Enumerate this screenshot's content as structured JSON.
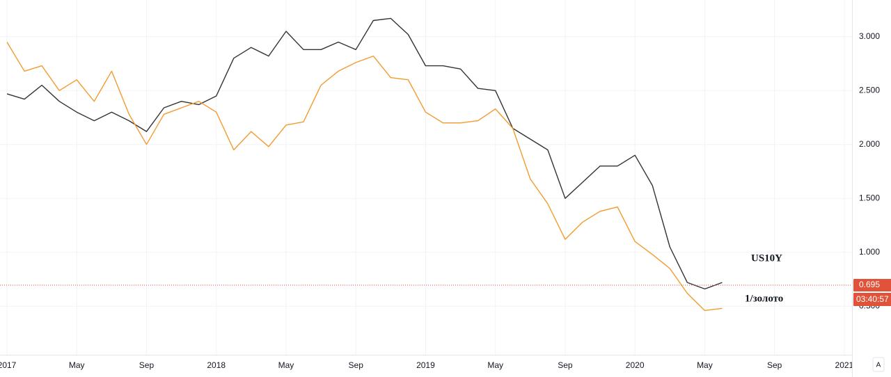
{
  "chart_data": {
    "type": "line",
    "categories": [
      "2017",
      null,
      null,
      null,
      "May",
      null,
      null,
      null,
      "Sep",
      null,
      null,
      null,
      "2018",
      null,
      null,
      null,
      "May",
      null,
      null,
      null,
      "Sep",
      null,
      null,
      null,
      "2019",
      null,
      null,
      null,
      "May",
      null,
      null,
      null,
      "Sep",
      null,
      null,
      null,
      "2020",
      null,
      null,
      null,
      "May",
      null,
      null,
      null,
      "Sep",
      null,
      null,
      null,
      "2021"
    ],
    "series": [
      {
        "name": "US10Y",
        "color": "#333333",
        "label_color": "#1a9090",
        "values": [
          2.47,
          2.42,
          2.55,
          2.4,
          2.3,
          2.22,
          2.3,
          2.22,
          2.12,
          2.34,
          2.4,
          2.37,
          2.45,
          2.8,
          2.9,
          2.82,
          3.05,
          2.88,
          2.88,
          2.95,
          2.88,
          3.15,
          3.17,
          3.02,
          2.73,
          2.73,
          2.7,
          2.52,
          2.5,
          2.15,
          2.05,
          1.95,
          1.5,
          1.65,
          1.8,
          1.8,
          1.9,
          1.62,
          1.05,
          0.72,
          0.66,
          0.72,
          null,
          null,
          null,
          null,
          null,
          null,
          null
        ]
      },
      {
        "name": "1/золото",
        "color": "#f39a2e",
        "label_color": "#f39a2e",
        "values": [
          2.95,
          2.68,
          2.73,
          2.5,
          2.6,
          2.4,
          2.68,
          2.28,
          2.0,
          2.28,
          2.34,
          2.4,
          2.3,
          1.95,
          2.12,
          1.98,
          2.18,
          2.21,
          2.55,
          2.68,
          2.76,
          2.82,
          2.62,
          2.6,
          2.3,
          2.2,
          2.2,
          2.22,
          2.33,
          2.15,
          1.68,
          1.45,
          1.12,
          1.28,
          1.38,
          1.42,
          1.1,
          0.98,
          0.85,
          0.62,
          0.46,
          0.48,
          null,
          null,
          null,
          null,
          null,
          null,
          null
        ]
      }
    ],
    "ylim": [
      0.05,
      3.34
    ],
    "yticks": [
      {
        "value": 0.5,
        "label": "0.500"
      },
      {
        "value": 1,
        "label": "1.000"
      },
      {
        "value": 1.5,
        "label": "1.500"
      },
      {
        "value": 2,
        "label": "2.000"
      },
      {
        "value": 2.5,
        "label": "2.500"
      },
      {
        "value": 3,
        "label": "3.000"
      }
    ],
    "grid": true,
    "last_value": 0.695,
    "countdown": "03:40:57",
    "scale_button": "A"
  }
}
